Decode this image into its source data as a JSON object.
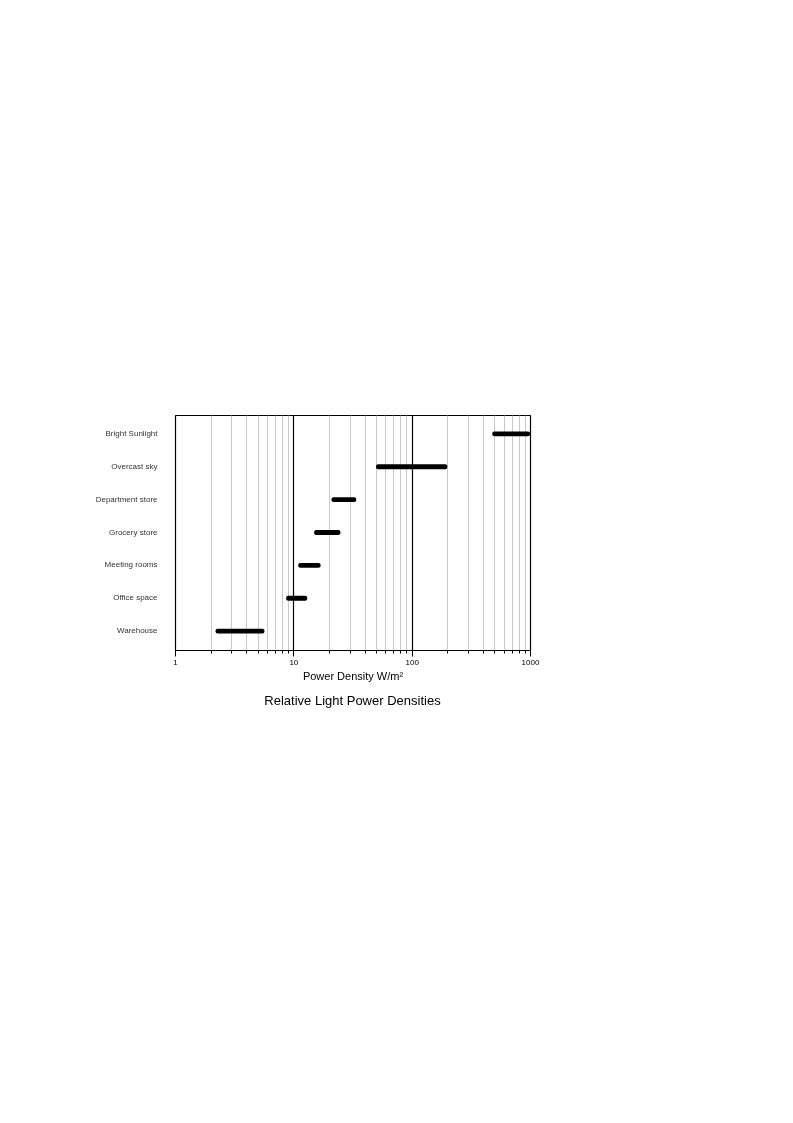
{
  "chart_data": {
    "type": "bar",
    "orientation": "horizontal",
    "title": "Relative Light Power Densities",
    "xlabel": "Power Density W/m²",
    "categories": [
      "Bright Sunlight",
      "Overcast sky",
      "Department store",
      "Grocery store",
      "Meeting rooms",
      "Office space",
      "Warehouse"
    ],
    "base": [
      480,
      50,
      21,
      15,
      11,
      8.7,
      2.2
    ],
    "values": [
      520,
      150,
      13,
      10,
      6,
      4.4,
      3.5
    ],
    "color": "#000000",
    "log": "x",
    "xlim": [
      1,
      1000
    ],
    "xticks": [
      1,
      {
        "value": 2,
        "label": null
      },
      {
        "value": 3,
        "label": null
      },
      {
        "value": 4,
        "label": null
      },
      {
        "value": 5,
        "label": null
      },
      {
        "value": 6,
        "label": null
      },
      {
        "value": 7,
        "label": null
      },
      {
        "value": 8,
        "label": null
      },
      {
        "value": 9,
        "label": null
      },
      10,
      {
        "value": 20,
        "label": null
      },
      {
        "value": 30,
        "label": null
      },
      {
        "value": 40,
        "label": null
      },
      {
        "value": 50,
        "label": null
      },
      {
        "value": 60,
        "label": null
      },
      {
        "value": 70,
        "label": null
      },
      {
        "value": 80,
        "label": null
      },
      {
        "value": 90,
        "label": null
      },
      100,
      {
        "value": 200,
        "label": null
      },
      {
        "value": 300,
        "label": null
      },
      {
        "value": 400,
        "label": null
      },
      {
        "value": 500,
        "label": null
      },
      {
        "value": 600,
        "label": null
      },
      {
        "value": 700,
        "label": null
      },
      {
        "value": 800,
        "label": null
      },
      {
        "value": 900,
        "label": null
      },
      1000
    ],
    "grid": "x"
  }
}
